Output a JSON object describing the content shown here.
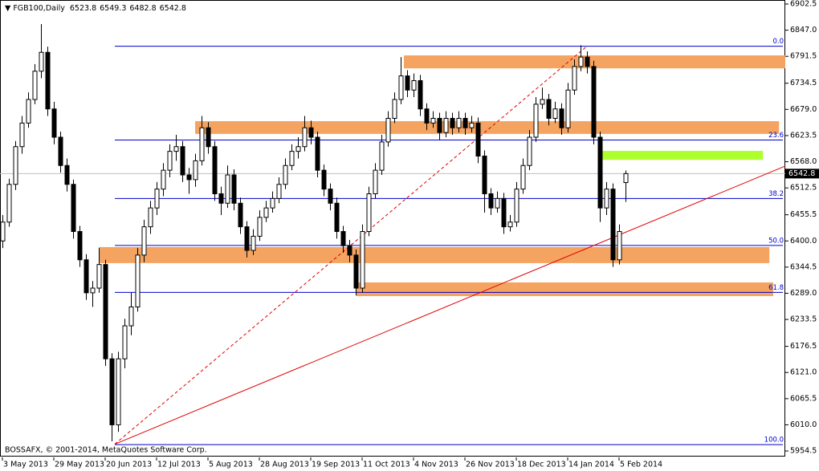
{
  "chart_data": {
    "type": "candlestick",
    "title": "FGB100,Daily",
    "copyright": "BOSSAFX, © 2001-2014, MetaQuotes Software Corp.",
    "ylim": [
      5941,
      6911
    ],
    "yticks": [
      6902.5,
      {
        "value": 6847.0,
        "label": "6847.0"
      },
      6791.5,
      6734.5,
      {
        "value": 6679.0,
        "label": "6679.0"
      },
      6623.5,
      {
        "value": 6568.0,
        "label": "6568.0"
      },
      6512.5,
      6455.5,
      {
        "value": 6400.0,
        "label": "6400.0"
      },
      6344.5,
      {
        "value": 6289.0,
        "label": "6289.0"
      },
      6233.5,
      6176.5,
      {
        "value": 6121.0,
        "label": "6121.0"
      },
      6065.5,
      {
        "value": 6010.0,
        "label": "6010.0"
      },
      5954.5
    ],
    "categories": [
      "3 May 2013",
      null,
      null,
      null,
      null,
      null,
      null,
      null,
      "29 May 2013",
      null,
      null,
      null,
      null,
      null,
      null,
      null,
      "20 Jun 2013",
      null,
      null,
      null,
      null,
      null,
      null,
      null,
      "12 Jul 2013",
      null,
      null,
      null,
      null,
      null,
      null,
      null,
      "5 Aug 2013",
      null,
      null,
      null,
      null,
      null,
      null,
      null,
      "28 Aug 2013",
      null,
      null,
      null,
      null,
      null,
      null,
      null,
      "19 Sep 2013",
      null,
      null,
      null,
      null,
      null,
      null,
      null,
      "11 Oct 2013",
      null,
      null,
      null,
      null,
      null,
      null,
      null,
      "4 Nov 2013",
      null,
      null,
      null,
      null,
      null,
      null,
      null,
      "26 Nov 2013",
      null,
      null,
      null,
      null,
      null,
      null,
      null,
      "18 Dec 2013",
      null,
      null,
      null,
      null,
      null,
      null,
      null,
      "14 Jan 2014",
      null,
      null,
      null,
      null,
      null,
      null,
      null,
      "5 Feb 2014",
      null
    ],
    "ohlc": [
      [
        6400,
        6455,
        6385,
        6440
      ],
      [
        6440,
        6532,
        6430,
        6520
      ],
      [
        6520,
        6612,
        6508,
        6600
      ],
      [
        6600,
        6665,
        6585,
        6650
      ],
      [
        6650,
        6715,
        6640,
        6700
      ],
      [
        6700,
        6775,
        6690,
        6760
      ],
      [
        6760,
        6860,
        6745,
        6800
      ],
      [
        6800,
        6812,
        6665,
        6680
      ],
      [
        6680,
        6695,
        6605,
        6620
      ],
      [
        6620,
        6632,
        6545,
        6560
      ],
      [
        6560,
        6575,
        6505,
        6520
      ],
      [
        6520,
        6530,
        6405,
        6420
      ],
      [
        6420,
        6432,
        6345,
        6360
      ],
      [
        6360,
        6372,
        6275,
        6290
      ],
      [
        6290,
        6315,
        6260,
        6300
      ],
      [
        6300,
        6385,
        6290,
        6350
      ],
      [
        6350,
        6360,
        6135,
        6150
      ],
      [
        6150,
        6162,
        5975,
        6010
      ],
      [
        6010,
        6165,
        5995,
        6150
      ],
      [
        6150,
        6235,
        6130,
        6220
      ],
      [
        6220,
        6290,
        6200,
        6260
      ],
      [
        6260,
        6385,
        6250,
        6370
      ],
      [
        6370,
        6445,
        6355,
        6430
      ],
      [
        6430,
        6485,
        6415,
        6470
      ],
      [
        6470,
        6525,
        6455,
        6510
      ],
      [
        6510,
        6565,
        6495,
        6550
      ],
      [
        6550,
        6605,
        6535,
        6590
      ],
      [
        6590,
        6625,
        6570,
        6600
      ],
      [
        6600,
        6612,
        6525,
        6540
      ],
      [
        6540,
        6555,
        6500,
        6530
      ],
      [
        6530,
        6585,
        6515,
        6570
      ],
      [
        6570,
        6665,
        6560,
        6640
      ],
      [
        6640,
        6652,
        6585,
        6600
      ],
      [
        6600,
        6612,
        6485,
        6500
      ],
      [
        6500,
        6515,
        6455,
        6480
      ],
      [
        6480,
        6560,
        6470,
        6540
      ],
      [
        6540,
        6552,
        6465,
        6480
      ],
      [
        6480,
        6492,
        6415,
        6430
      ],
      [
        6430,
        6442,
        6365,
        6380
      ],
      [
        6380,
        6425,
        6370,
        6410
      ],
      [
        6410,
        6465,
        6400,
        6450
      ],
      [
        6450,
        6485,
        6440,
        6470
      ],
      [
        6470,
        6505,
        6460,
        6490
      ],
      [
        6490,
        6535,
        6480,
        6520
      ],
      [
        6520,
        6575,
        6510,
        6560
      ],
      [
        6560,
        6605,
        6550,
        6590
      ],
      [
        6590,
        6620,
        6575,
        6600
      ],
      [
        6600,
        6665,
        6590,
        6640
      ],
      [
        6640,
        6655,
        6605,
        6620
      ],
      [
        6620,
        6632,
        6535,
        6550
      ],
      [
        6550,
        6562,
        6495,
        6510
      ],
      [
        6510,
        6522,
        6465,
        6480
      ],
      [
        6480,
        6492,
        6405,
        6420
      ],
      [
        6420,
        6432,
        6375,
        6390
      ],
      [
        6390,
        6402,
        6355,
        6370
      ],
      [
        6370,
        6382,
        6285,
        6300
      ],
      [
        6300,
        6435,
        6290,
        6420
      ],
      [
        6420,
        6515,
        6410,
        6500
      ],
      [
        6500,
        6565,
        6490,
        6550
      ],
      [
        6550,
        6625,
        6540,
        6610
      ],
      [
        6610,
        6675,
        6600,
        6660
      ],
      [
        6660,
        6715,
        6650,
        6700
      ],
      [
        6700,
        6790,
        6690,
        6750
      ],
      [
        6750,
        6762,
        6705,
        6720
      ],
      [
        6720,
        6755,
        6705,
        6740
      ],
      [
        6740,
        6752,
        6665,
        6680
      ],
      [
        6680,
        6692,
        6635,
        6650
      ],
      [
        6650,
        6675,
        6640,
        6660
      ],
      [
        6660,
        6672,
        6615,
        6630
      ],
      [
        6630,
        6675,
        6620,
        6660
      ],
      [
        6660,
        6672,
        6625,
        6640
      ],
      [
        6640,
        6675,
        6630,
        6660
      ],
      [
        6660,
        6672,
        6625,
        6640
      ],
      [
        6640,
        6665,
        6630,
        6650
      ],
      [
        6650,
        6662,
        6565,
        6580
      ],
      [
        6580,
        6592,
        6460,
        6500
      ],
      [
        6500,
        6512,
        6455,
        6470
      ],
      [
        6470,
        6505,
        6460,
        6490
      ],
      [
        6490,
        6502,
        6415,
        6430
      ],
      [
        6430,
        6455,
        6420,
        6440
      ],
      [
        6440,
        6525,
        6430,
        6510
      ],
      [
        6510,
        6575,
        6500,
        6560
      ],
      [
        6560,
        6635,
        6550,
        6620
      ],
      [
        6620,
        6705,
        6610,
        6690
      ],
      [
        6690,
        6725,
        6680,
        6700
      ],
      [
        6700,
        6712,
        6645,
        6660
      ],
      [
        6660,
        6695,
        6650,
        6680
      ],
      [
        6680,
        6692,
        6625,
        6640
      ],
      [
        6640,
        6735,
        6630,
        6720
      ],
      [
        6720,
        6785,
        6710,
        6770
      ],
      [
        6770,
        6815,
        6760,
        6790
      ],
      [
        6790,
        6802,
        6755,
        6770
      ],
      [
        6770,
        6782,
        6605,
        6620
      ],
      [
        6620,
        6632,
        6440,
        6470
      ],
      [
        6470,
        6525,
        6455,
        6510
      ],
      [
        6510,
        6522,
        6345,
        6360
      ],
      [
        6360,
        6435,
        6350,
        6420
      ],
      [
        6523.8,
        6549.3,
        6482.8,
        6542.8
      ]
    ],
    "fib_levels": [
      {
        "label": "0.0",
        "value": 6813
      },
      {
        "label": "23.6",
        "value": 6614
      },
      {
        "label": "38.2",
        "value": 6490
      },
      {
        "label": "50.0",
        "value": 6390.5
      },
      {
        "label": "61.8",
        "value": 6291
      },
      {
        "label": "100.0",
        "value": 5968
      }
    ],
    "zones": [
      {
        "start": 62.5,
        "end": 122,
        "low": 6766,
        "high": 6793.5,
        "color": "#f4a460"
      },
      {
        "start": 30,
        "end": 120.9,
        "low": 6627,
        "high": 6654,
        "color": "#f4a460"
      },
      {
        "start": 15,
        "end": 119.4,
        "low": 6353,
        "high": 6387,
        "color": "#f4a460"
      },
      {
        "start": 55,
        "end": 120,
        "low": 6283,
        "high": 6312,
        "color": "#f4a460"
      },
      {
        "start": 93.4,
        "end": 118.4,
        "low": 6572,
        "high": 6591,
        "color": "#adff2f"
      }
    ],
    "trendlines": [
      {
        "x": [
          17.5,
          95
        ],
        "y": [
          5969,
          6407
        ],
        "dashed": false,
        "extend": true,
        "color": "#e00000"
      },
      {
        "x": [
          17.5,
          91
        ],
        "y": [
          5969,
          6813
        ],
        "dashed": true,
        "extend": false,
        "color": "#e00000"
      }
    ]
  }
}
